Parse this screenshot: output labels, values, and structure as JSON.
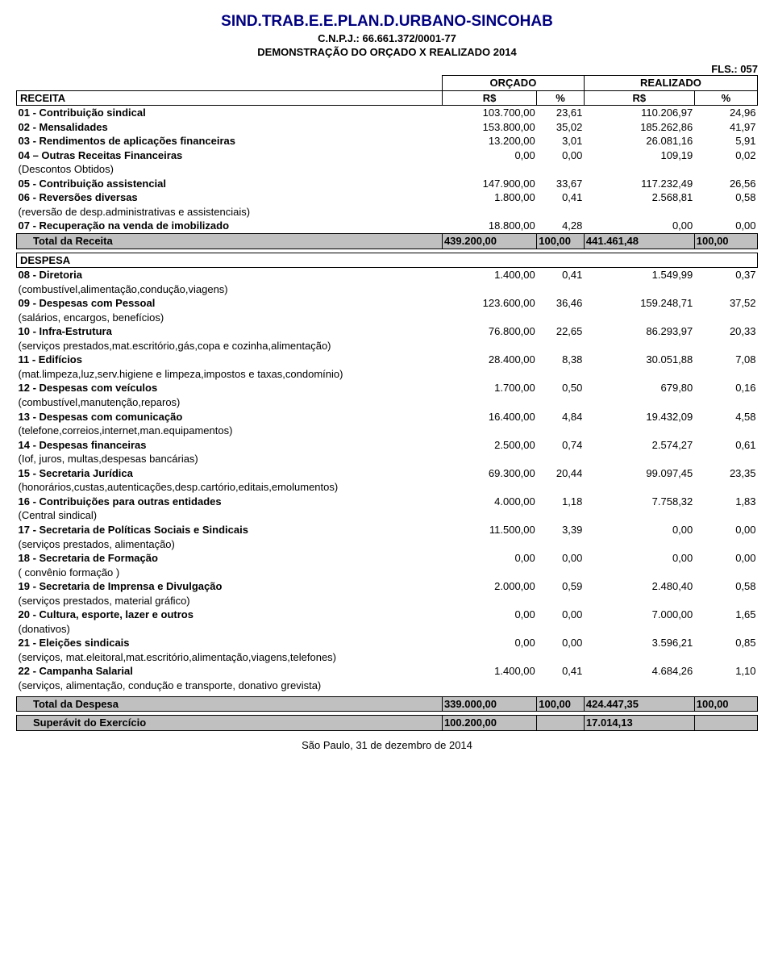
{
  "header": {
    "title": "SIND.TRAB.E.E.PLAN.D.URBANO-SINCOHAB",
    "cnpj": "C.N.P.J.: 66.661.372/0001-77",
    "report": "DEMONSTRAÇÃO  DO ORÇADO X REALIZADO 2014",
    "fls": "FLS.: 057"
  },
  "col_headers": {
    "orcado": "ORÇADO",
    "realizado": "REALIZADO",
    "rs1": "R$",
    "pct1": "%",
    "rs2": "R$",
    "pct2": "%"
  },
  "receita": {
    "title": "RECEITA",
    "rows": [
      {
        "label": "01 - Contribuição sindical",
        "v1": "103.700,00",
        "p1": "23,61",
        "v2": "110.206,97",
        "p2": "24,96",
        "bold": true
      },
      {
        "label": "02 - Mensalidades",
        "v1": "153.800,00",
        "p1": "35,02",
        "v2": "185.262,86",
        "p2": "41,97",
        "bold": true
      },
      {
        "label": "03 - Rendimentos de aplicações financeiras",
        "v1": "13.200,00",
        "p1": "3,01",
        "v2": "26.081,16",
        "p2": "5,91",
        "bold": true
      },
      {
        "label": "04 – Outras Receitas Financeiras",
        "v1": "0,00",
        "p1": "0,00",
        "v2": "109,19",
        "p2": "0,02",
        "bold": true
      },
      {
        "label": "(Descontos Obtidos)",
        "note": true
      },
      {
        "label": "05 - Contribuição assistencial",
        "v1": "147.900,00",
        "p1": "33,67",
        "v2": "117.232,49",
        "p2": "26,56",
        "bold": true
      },
      {
        "label": "06 - Reversões diversas",
        "v1": "1.800,00",
        "p1": "0,41",
        "v2": "2.568,81",
        "p2": "0,58",
        "bold": true
      },
      {
        "label": "(reversão de desp.administrativas e assistenciais)",
        "note": true
      },
      {
        "label": "07 - Recuperação na venda de imobilizado",
        "v1": "18.800,00",
        "p1": "4,28",
        "v2": "0,00",
        "p2": "0,00",
        "bold": true
      }
    ],
    "total": {
      "label": "Total da Receita",
      "v1": "439.200,00",
      "p1": "100,00",
      "v2": "441.461,48",
      "p2": "100,00"
    }
  },
  "despesa": {
    "title": "DESPESA",
    "rows": [
      {
        "label": "08 - Diretoria",
        "v1": "1.400,00",
        "p1": "0,41",
        "v2": "1.549,99",
        "p2": "0,37",
        "bold": true
      },
      {
        "label": "(combustível,alimentação,condução,viagens)",
        "note": true
      },
      {
        "label": "09 - Despesas com Pessoal",
        "v1": "123.600,00",
        "p1": "36,46",
        "v2": "159.248,71",
        "p2": "37,52",
        "bold": true
      },
      {
        "label": "(salários, encargos, benefícios)",
        "note": true
      },
      {
        "label": "10 - Infra-Estrutura",
        "v1": "76.800,00",
        "p1": "22,65",
        "v2": "86.293,97",
        "p2": "20,33",
        "bold": true
      },
      {
        "label": "(serviços prestados,mat.escritório,gás,copa e cozinha,alimentação)",
        "note": true
      },
      {
        "label": "11 - Edifícios",
        "v1": "28.400,00",
        "p1": "8,38",
        "v2": "30.051,88",
        "p2": "7,08",
        "bold": true
      },
      {
        "label": "(mat.limpeza,luz,serv.higiene e limpeza,impostos e taxas,condomínio)",
        "note": true
      },
      {
        "label": "12 - Despesas com veículos",
        "v1": "1.700,00",
        "p1": "0,50",
        "v2": "679,80",
        "p2": "0,16",
        "bold": true
      },
      {
        "label": "(combustível,manutenção,reparos)",
        "note": true
      },
      {
        "label": "13 - Despesas com comunicação",
        "v1": "16.400,00",
        "p1": "4,84",
        "v2": "19.432,09",
        "p2": "4,58",
        "bold": true
      },
      {
        "label": "(telefone,correios,internet,man.equipamentos)",
        "note": true
      },
      {
        "label": "14 - Despesas financeiras",
        "v1": "2.500,00",
        "p1": "0,74",
        "v2": "2.574,27",
        "p2": "0,61",
        "bold": true
      },
      {
        "label": "(Iof, juros, multas,despesas bancárias)",
        "note": true
      },
      {
        "label": "15 - Secretaria Jurídica",
        "v1": "69.300,00",
        "p1": "20,44",
        "v2": "99.097,45",
        "p2": "23,35",
        "bold": true
      },
      {
        "label": "(honorários,custas,autenticações,desp.cartório,editais,emolumentos)",
        "note": true
      },
      {
        "label": "16 - Contribuições para outras entidades",
        "v1": "4.000,00",
        "p1": "1,18",
        "v2": "7.758,32",
        "p2": "1,83",
        "bold": true
      },
      {
        "label": "(Central sindical)",
        "note": true
      },
      {
        "label": "17 - Secretaria de Políticas Sociais e Sindicais",
        "v1": "11.500,00",
        "p1": "3,39",
        "v2": "0,00",
        "p2": "0,00",
        "bold": true
      },
      {
        "label": "(serviços prestados, alimentação)",
        "note": true
      },
      {
        "label": "18 - Secretaria de Formação",
        "v1": "0,00",
        "p1": "0,00",
        "v2": "0,00",
        "p2": "0,00",
        "bold": true
      },
      {
        "label": "( convênio formação )",
        "note": true
      },
      {
        "label": "19 - Secretaria de Imprensa e Divulgação",
        "v1": "2.000,00",
        "p1": "0,59",
        "v2": "2.480,40",
        "p2": "0,58",
        "bold": true
      },
      {
        "label": "(serviços prestados, material gráfico)",
        "note": true
      },
      {
        "label": "20 - Cultura, esporte, lazer e outros",
        "v1": "0,00",
        "p1": "0,00",
        "v2": "7.000,00",
        "p2": "1,65",
        "bold": true
      },
      {
        "label": "(donativos)",
        "note": true
      },
      {
        "label": "21 - Eleições sindicais",
        "v1": "0,00",
        "p1": "0,00",
        "v2": "3.596,21",
        "p2": "0,85",
        "bold": true
      },
      {
        "label": "(serviços, mat.eleitoral,mat.escritório,alimentação,viagens,telefones)",
        "note": true
      },
      {
        "label": "22 - Campanha Salarial",
        "v1": "1.400,00",
        "p1": "0,41",
        "v2": "4.684,26",
        "p2": "1,10",
        "bold": true
      },
      {
        "label": "(serviços, alimentação, condução e transporte, donativo grevista)",
        "note": true
      }
    ],
    "total": {
      "label": "Total da Despesa",
      "v1": "339.000,00",
      "p1": "100,00",
      "v2": "424.447,35",
      "p2": "100,00"
    }
  },
  "superavit": {
    "label": "Superávit do Exercício",
    "v1": "100.200,00",
    "v2": "17.014,13"
  },
  "footer": {
    "date": "São Paulo, 31 de dezembro de 2014"
  }
}
